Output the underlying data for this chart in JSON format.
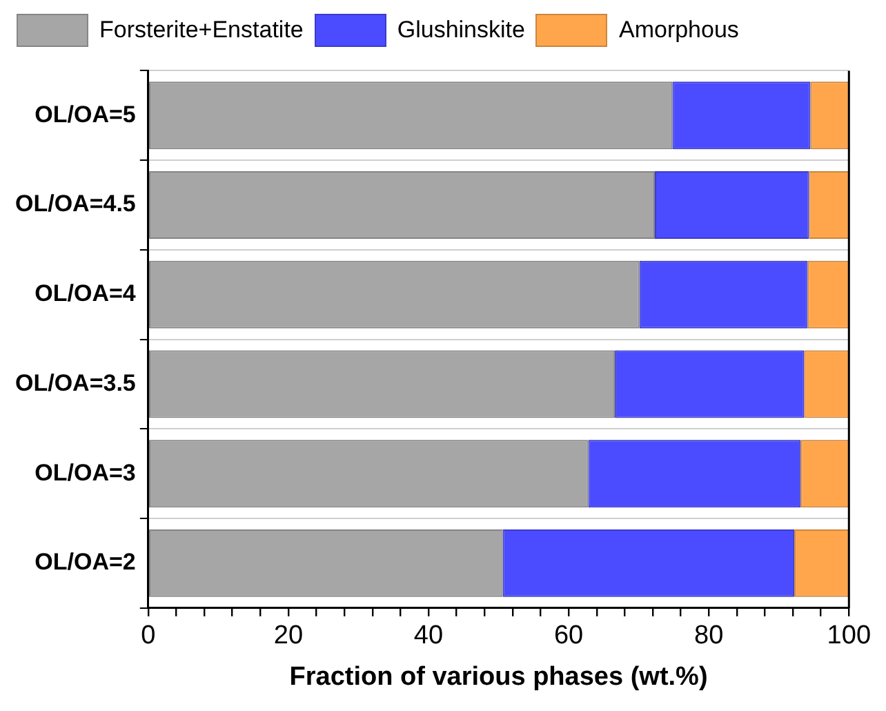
{
  "chart_data": {
    "type": "bar",
    "orientation": "horizontal",
    "stacked": true,
    "categories": [
      "OL/OA=5",
      "OL/OA=4.5",
      "OL/OA=4",
      "OL/OA=3.5",
      "OL/OA=3",
      "OL/OA=2"
    ],
    "series": [
      {
        "name": "Forsterite+Enstatite",
        "color": "#a6a6a6",
        "values": [
          74.8,
          72.3,
          70.1,
          66.6,
          62.8,
          50.6
        ]
      },
      {
        "name": "Glushinskite",
        "color": "#4b4bff",
        "values": [
          19.7,
          22.0,
          24.0,
          27.0,
          30.3,
          41.6
        ]
      },
      {
        "name": "Amorphous",
        "color": "#ffa64d",
        "values": [
          5.5,
          5.7,
          5.9,
          6.4,
          6.9,
          7.8
        ]
      }
    ],
    "xlabel": "Fraction of various phases (wt.%)",
    "xlim": [
      0,
      100
    ],
    "xticks": [
      0,
      {
        "value": 4,
        "label": null
      },
      {
        "value": 8,
        "label": null
      },
      {
        "value": 12,
        "label": null
      },
      {
        "value": 16,
        "label": null
      },
      20,
      {
        "value": 24,
        "label": null
      },
      {
        "value": 28,
        "label": null
      },
      {
        "value": 32,
        "label": null
      },
      {
        "value": 36,
        "label": null
      },
      40,
      {
        "value": 44,
        "label": null
      },
      {
        "value": 48,
        "label": null
      },
      {
        "value": 52,
        "label": null
      },
      {
        "value": 56,
        "label": null
      },
      60,
      {
        "value": 64,
        "label": null
      },
      {
        "value": 68,
        "label": null
      },
      {
        "value": 72,
        "label": null
      },
      {
        "value": 76,
        "label": null
      },
      80,
      {
        "value": 84,
        "label": null
      },
      {
        "value": 88,
        "label": null
      },
      {
        "value": 92,
        "label": null
      },
      {
        "value": 96,
        "label": null
      },
      100
    ],
    "grid": "y",
    "legend": "top"
  }
}
